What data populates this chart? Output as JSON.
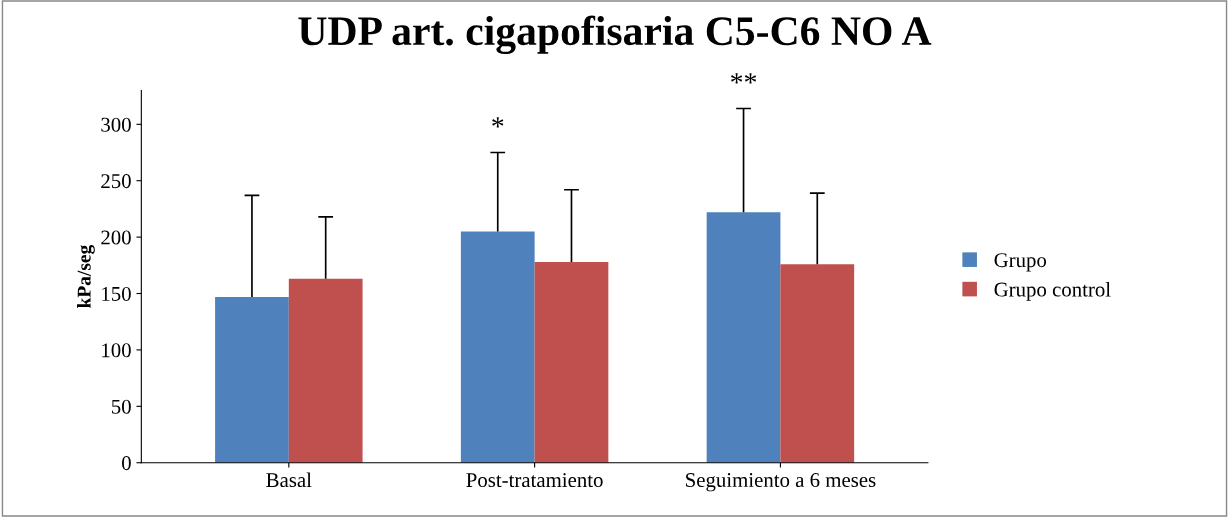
{
  "chart_data": {
    "type": "bar",
    "title": "UDP art. cigapofisaria C5-C6 NO A",
    "ylabel": "kPa/seg",
    "categories": [
      "Basal",
      "Post-tratamiento",
      "Seguimiento a 6 meses"
    ],
    "series": [
      {
        "name": "Grupo",
        "color": "#4f81bd",
        "values": [
          147,
          205,
          222
        ],
        "errors": [
          [
            147,
            237
          ],
          [
            205,
            275
          ],
          [
            222,
            314
          ]
        ]
      },
      {
        "name": "Grupo control",
        "color": "#c0504d",
        "values": [
          163,
          178,
          176
        ],
        "errors": [
          [
            163,
            218
          ],
          [
            178,
            242
          ],
          [
            176,
            239
          ]
        ]
      }
    ],
    "annotations": [
      "*",
      "**"
    ],
    "ylim": [
      0,
      330
    ],
    "yticks": [
      0,
      50,
      100,
      150,
      200,
      250,
      300
    ],
    "grid": false,
    "legend": "right"
  }
}
